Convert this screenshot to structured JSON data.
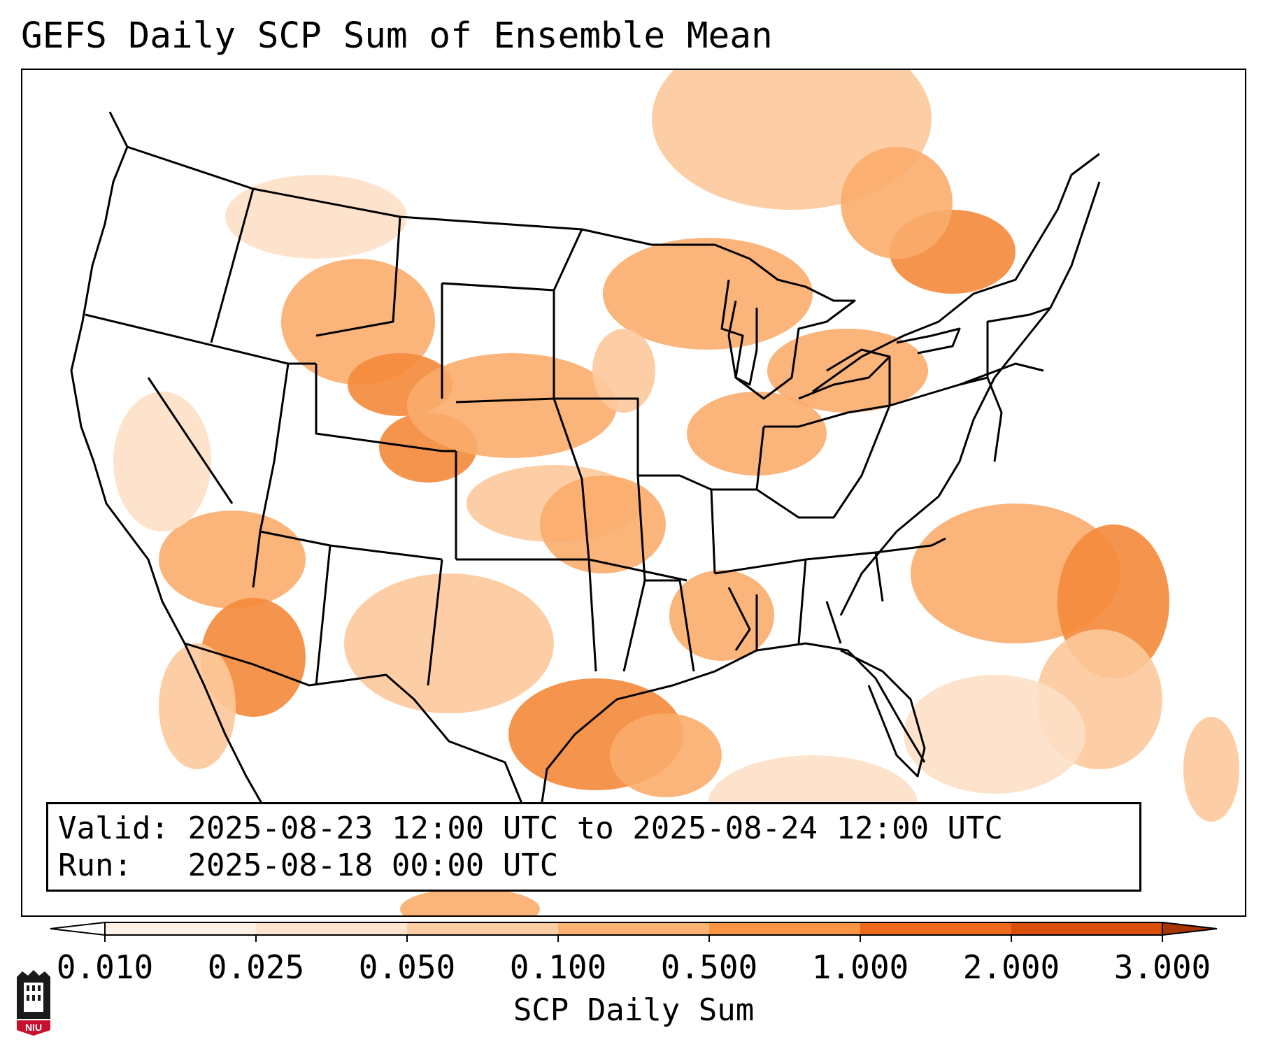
{
  "title": "GEFS Daily SCP Sum of Ensemble Mean",
  "info": {
    "valid_label": "Valid:",
    "valid_range": "2025-08-23 12:00 UTC to 2025-08-24 12:00 UTC",
    "run_label": "Run:",
    "run_time": "2025-08-18 00:00 UTC"
  },
  "colorbar": {
    "label": "SCP Daily Sum",
    "ticks": [
      "0.010",
      "0.025",
      "0.050",
      "0.100",
      "0.500",
      "1.000",
      "2.000",
      "3.000"
    ],
    "colors": [
      "#fff1e6",
      "#fee3cd",
      "#fdcda3",
      "#fdb173",
      "#f99544",
      "#ed6a1b",
      "#d94e0a",
      "#a83503"
    ]
  },
  "logo": {
    "text": "NIU"
  },
  "map_fields": {
    "palette": [
      "#fff5ec",
      "#fee0c6",
      "#fdc99b",
      "#fbac6c",
      "#f48a3a",
      "#e46b1c"
    ]
  }
}
